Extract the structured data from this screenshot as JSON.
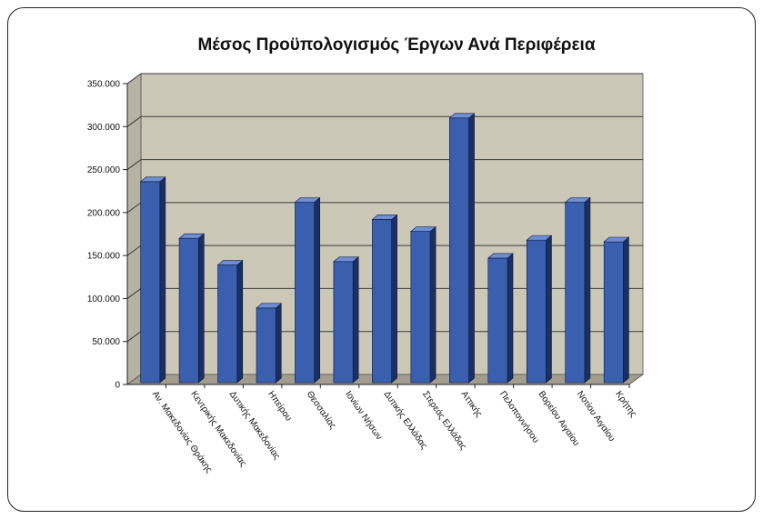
{
  "chart_data": {
    "type": "bar",
    "title": "Μέσος Προϋπολογισμός Έργων Ανά Περιφέρεια",
    "xlabel": "",
    "ylabel": "",
    "ylim": [
      0,
      350000
    ],
    "yticks": [
      0,
      50000,
      100000,
      150000,
      200000,
      250000,
      300000,
      350000
    ],
    "ytick_labels": [
      "0",
      "50.000",
      "100.000",
      "150.000",
      "200.000",
      "250.000",
      "300.000",
      "350.000"
    ],
    "grid": true,
    "legend": "none",
    "categories": [
      "Αν. Μακεδονίας Θράκης",
      "Κεντρικής Μακεδονίας",
      "Δυτικής Μακεδονίας",
      "Ηπείρου",
      "Θεσσαλίας",
      "Ιονίων Νήσων",
      "Δυτικής Ελλάδας",
      "Στερεάς Ελλάδας",
      "Αττικής",
      "Πελοποννήσου",
      "Βορείου Αιγαίου",
      "Νοτίου Αιγαίου",
      "Κρήτης"
    ],
    "values": [
      236000,
      170000,
      139000,
      89000,
      212000,
      143000,
      192000,
      178000,
      310000,
      147000,
      168000,
      212000,
      166000
    ],
    "colors": {
      "bar_front": "#3a5fae",
      "bar_side": "#1a2f66",
      "bar_top": "#6f8fd4",
      "plot_back": "#ccc8b8",
      "plot_floor": "#a29d8e",
      "plot_wall": "#b7b3a4",
      "grid": "#3a3a3a"
    }
  }
}
